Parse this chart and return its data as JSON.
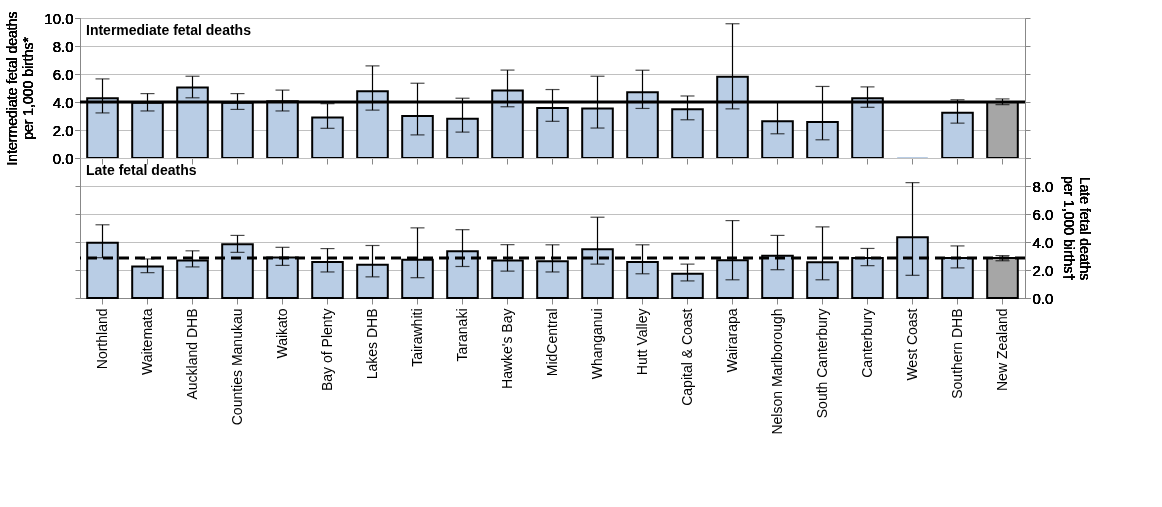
{
  "chart_data": [
    {
      "type": "bar",
      "title": "Intermediate fetal deaths",
      "ylabel": "Intermediate fetal deaths per 1,000 births*",
      "categories": [
        "Northland",
        "Waitemata",
        "Auckland DHB",
        "Counties Manukau",
        "Waikato",
        "Bay of Plenty",
        "Lakes DHB",
        "Tairawhiti",
        "Taranaki",
        "Hawke's Bay",
        "MidCentral",
        "Whanganui",
        "Hutt Valley",
        "Capital & Coast",
        "Wairarapa",
        "Nelson Marlborough",
        "South Canterbury",
        "Canterbury",
        "West Coast",
        "Southern DHB",
        "New Zealand"
      ],
      "values": [
        4.27,
        3.94,
        5.04,
        3.94,
        4.05,
        2.89,
        4.77,
        3.0,
        2.81,
        4.82,
        3.57,
        3.54,
        4.7,
        3.49,
        5.81,
        2.62,
        2.57,
        4.27,
        0,
        3.24,
        4.0
      ],
      "errors": [
        [
          3.22,
          5.65
        ],
        [
          3.36,
          4.6
        ],
        [
          4.3,
          5.84
        ],
        [
          3.47,
          4.6
        ],
        [
          3.36,
          4.85
        ],
        [
          2.12,
          3.88
        ],
        [
          3.42,
          6.58
        ],
        [
          1.65,
          5.34
        ],
        [
          1.85,
          4.27
        ],
        [
          3.66,
          6.28
        ],
        [
          2.62,
          4.89
        ],
        [
          2.14,
          5.84
        ],
        [
          3.54,
          6.27
        ],
        [
          2.73,
          4.43
        ],
        [
          3.51,
          9.59
        ],
        [
          1.73,
          4.0
        ],
        [
          1.3,
          5.11
        ],
        [
          3.62,
          5.08
        ],
        null,
        [
          2.49,
          4.16
        ],
        [
          3.81,
          4.22
        ]
      ],
      "colors": [
        "#b9cde5",
        "#b9cde5",
        "#b9cde5",
        "#b9cde5",
        "#b9cde5",
        "#b9cde5",
        "#b9cde5",
        "#b9cde5",
        "#b9cde5",
        "#b9cde5",
        "#b9cde5",
        "#b9cde5",
        "#b9cde5",
        "#b9cde5",
        "#b9cde5",
        "#b9cde5",
        "#b9cde5",
        "#b9cde5",
        "#b9cde5",
        "#b9cde5",
        "#a6a6a6"
      ],
      "ylim": [
        0,
        10
      ],
      "yticks": [
        {
          "value": 0,
          "label": "0.0"
        },
        {
          "value": 2,
          "label": "2.0"
        },
        {
          "value": 4,
          "label": "4.0"
        },
        {
          "value": 6,
          "label": "6.0"
        },
        {
          "value": 8,
          "label": "8.0"
        },
        {
          "value": 10,
          "label": "10.0"
        }
      ],
      "grid": "y",
      "tick_labels": "y",
      "ref_lines": [
        {
          "axis": "y",
          "value": 4.0,
          "label": null,
          "color": "#000000",
          "line_style": "solid"
        }
      ]
    },
    {
      "type": "bar",
      "title": "Late fetal deaths",
      "y2label": "Late fetal deaths per 1,000 births†",
      "categories": [
        "Northland",
        "Waitemata",
        "Auckland DHB",
        "Counties Manukau",
        "Waikato",
        "Bay of Plenty",
        "Lakes DHB",
        "Tairawhiti",
        "Taranaki",
        "Hawke's Bay",
        "MidCentral",
        "Whanganui",
        "Hutt Valley",
        "Capital & Coast",
        "Wairarapa",
        "Nelson Marlborough",
        "South Canterbury",
        "Canterbury",
        "West Coast",
        "Southern DHB",
        "New Zealand"
      ],
      "series": [
        {
          "axis": "y2",
          "values": [
            3.95,
            2.25,
            2.68,
            3.84,
            2.9,
            2.58,
            2.38,
            2.74,
            3.34,
            2.68,
            2.63,
            3.48,
            2.58,
            1.73,
            2.69,
            3.01,
            2.55,
            2.85,
            4.34,
            2.85,
            2.85
          ],
          "errors": [
            [
              2.88,
              5.23
            ],
            [
              1.81,
              2.79
            ],
            [
              2.22,
              3.37
            ],
            [
              3.26,
              4.47
            ],
            [
              2.33,
              3.62
            ],
            [
              1.86,
              3.53
            ],
            [
              1.51,
              3.75
            ],
            [
              1.45,
              5.01
            ],
            [
              2.25,
              4.88
            ],
            [
              1.92,
              3.81
            ],
            [
              1.86,
              3.8
            ],
            [
              2.42,
              5.77
            ],
            [
              1.73,
              3.8
            ],
            [
              1.22,
              2.42
            ],
            [
              1.3,
              5.53
            ],
            [
              2.02,
              4.47
            ],
            [
              1.3,
              5.08
            ],
            [
              2.31,
              3.54
            ],
            [
              1.62,
              8.24
            ],
            [
              2.15,
              3.72
            ],
            [
              2.66,
              3.03
            ]
          ]
        }
      ],
      "colors": [
        "#b9cde5",
        "#b9cde5",
        "#b9cde5",
        "#b9cde5",
        "#b9cde5",
        "#b9cde5",
        "#b9cde5",
        "#b9cde5",
        "#b9cde5",
        "#b9cde5",
        "#b9cde5",
        "#b9cde5",
        "#b9cde5",
        "#b9cde5",
        "#b9cde5",
        "#b9cde5",
        "#b9cde5",
        "#b9cde5",
        "#b9cde5",
        "#b9cde5",
        "#a6a6a6"
      ],
      "y2lim": [
        0,
        10
      ],
      "y2ticks": [
        {
          "value": 0,
          "label": "0.0"
        },
        {
          "value": 2,
          "label": "2.0"
        },
        {
          "value": 4,
          "label": "4.0"
        },
        {
          "value": 6,
          "label": "6.0"
        },
        {
          "value": 8,
          "label": "8.0"
        },
        {
          "value": 10,
          "label": null
        }
      ],
      "grid": "y",
      "ref_lines": [
        {
          "axis": "y2",
          "value": 2.85,
          "label": null,
          "color": "#000000",
          "line_style": "dashed"
        }
      ]
    }
  ]
}
